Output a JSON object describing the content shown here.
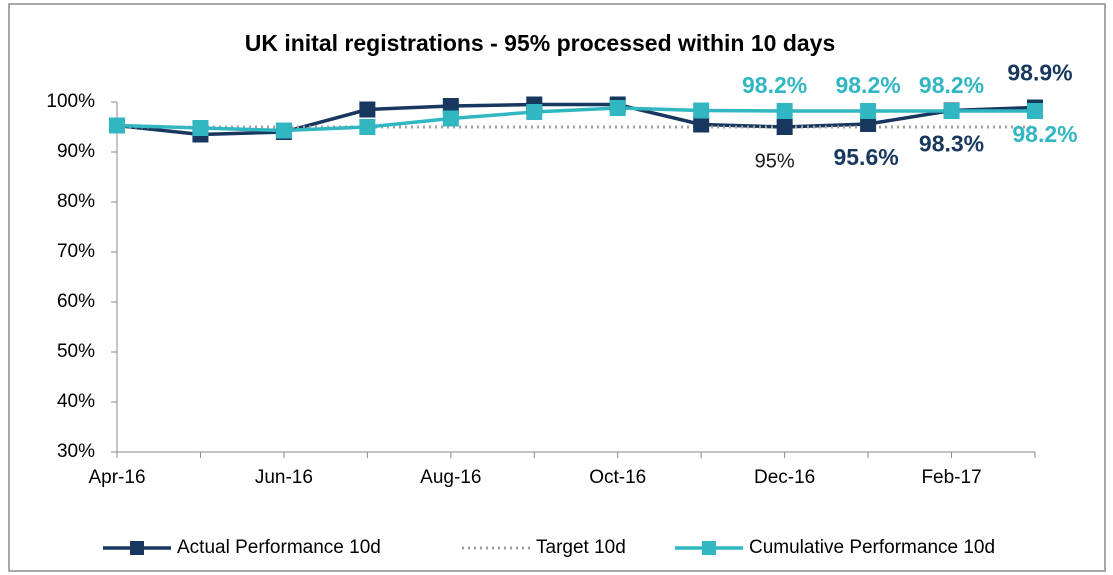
{
  "chart_data": {
    "type": "line",
    "title": "UK inital registrations - 95% processed within 10 days",
    "categories": [
      "Apr-16",
      null,
      "Jun-16",
      null,
      "Aug-16",
      null,
      "Oct-16",
      null,
      "Dec-16",
      null,
      "Feb-17",
      null
    ],
    "ylim": [
      30,
      100
    ],
    "yticks": [
      {
        "value": 30,
        "label": "30%"
      },
      {
        "value": 40,
        "label": "40%"
      },
      {
        "value": 50,
        "label": "50%"
      },
      {
        "value": 60,
        "label": "60%"
      },
      {
        "value": 70,
        "label": "70%"
      },
      {
        "value": 80,
        "label": "80%"
      },
      {
        "value": 90,
        "label": "90%"
      },
      {
        "value": 100,
        "label": "100%"
      }
    ],
    "series": [
      {
        "name": "Actual Performance 10d",
        "color": "#17375e",
        "marker": "square",
        "values": [
          95.3,
          93.5,
          94,
          98.5,
          99.2,
          99.5,
          99.5,
          95.5,
          95,
          95.6,
          98.3,
          98.9
        ],
        "value_labels": [
          null,
          null,
          null,
          null,
          null,
          null,
          null,
          null,
          "95%",
          "95.6%",
          "98.3%",
          "98.9%"
        ]
      },
      {
        "name": "Target 10d",
        "color": "#a0a0a0",
        "dash": "dotted",
        "values": [
          95,
          95,
          95,
          95,
          95,
          95,
          95,
          95,
          95,
          95,
          95,
          95
        ]
      },
      {
        "name": "Cumulative Performance 10d",
        "color": "#31b7c2",
        "marker": "square",
        "values": [
          95.3,
          94.8,
          94.3,
          95,
          96.7,
          98,
          98.8,
          98.3,
          98.2,
          98.2,
          98.2,
          98.2
        ],
        "value_labels": [
          null,
          null,
          null,
          null,
          null,
          null,
          null,
          null,
          "98.2%",
          "98.2%",
          "98.2%",
          "98.2%"
        ]
      }
    ],
    "legend": "bottom"
  }
}
